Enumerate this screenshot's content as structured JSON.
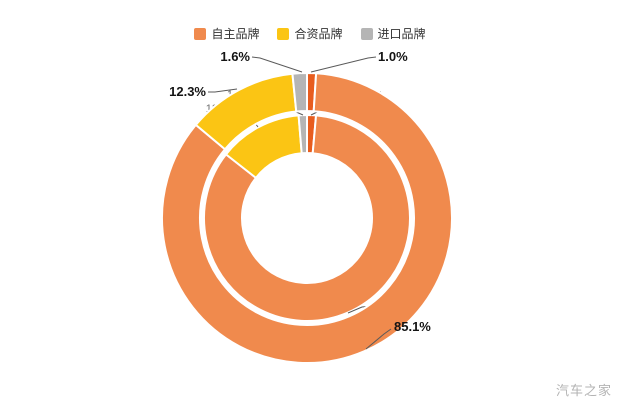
{
  "background": "#ffffff",
  "legend": {
    "position": "top",
    "items": [
      {
        "label": "自主品牌",
        "color": "#F08A4D"
      },
      {
        "label": "合资品牌",
        "color": "#FBC514"
      },
      {
        "label": "进口品牌",
        "color": "#B5B5B5"
      }
    ]
  },
  "chart_data": {
    "type": "pie",
    "subtype": "nested-donut-two-rings",
    "title": "",
    "legend_position": "top",
    "slice_order": "clockwise-from-12-o-clock",
    "rings": [
      {
        "name": "inner-ring",
        "label_style": "gray",
        "slices": [
          {
            "label": "1.4%",
            "value": 1.4,
            "color": "#E85D1E"
          },
          {
            "label": "84.2%",
            "value": 84.2,
            "color": "#F08A4D"
          },
          {
            "label": "13.1%",
            "value": 13.1,
            "color": "#FBC514"
          },
          {
            "label": "1.3%",
            "value": 1.3,
            "color": "#B5B5B5"
          }
        ]
      },
      {
        "name": "outer-ring",
        "label_style": "bold-black",
        "slices": [
          {
            "label": "1.0%",
            "value": 1.0,
            "color": "#E85D1E"
          },
          {
            "label": "85.1%",
            "value": 85.1,
            "color": "#F08A4D"
          },
          {
            "label": "12.3%",
            "value": 12.3,
            "color": "#FBC514"
          },
          {
            "label": "1.6%",
            "value": 1.6,
            "color": "#B5B5B5"
          }
        ]
      }
    ]
  },
  "watermark": "汽车之家"
}
